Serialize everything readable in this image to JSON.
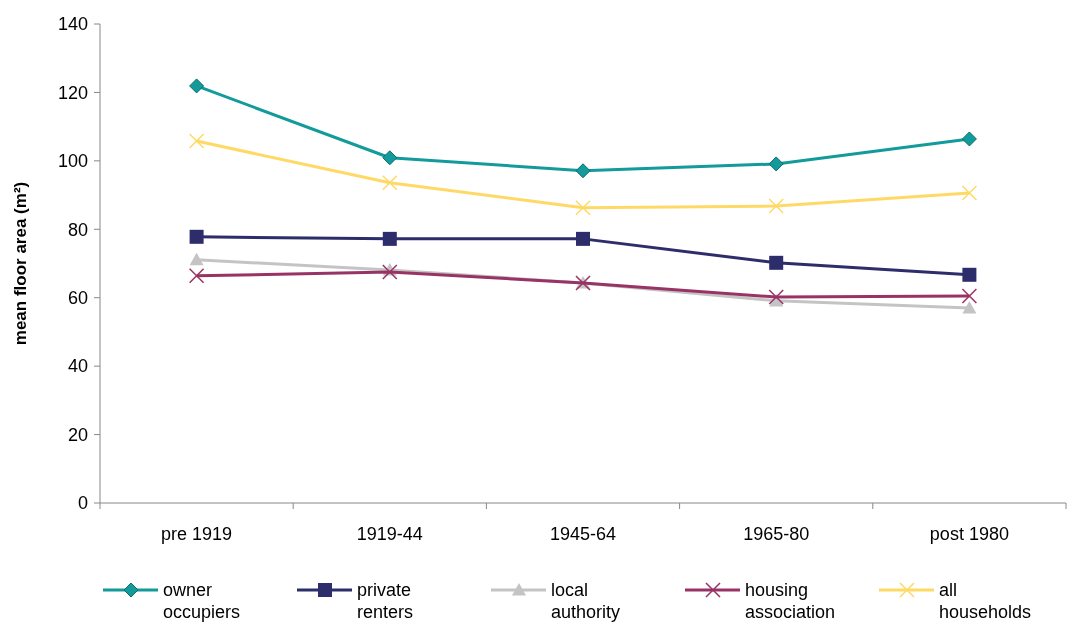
{
  "chart_data": {
    "type": "line",
    "ylabel": "mean floor area (m²)",
    "categories": [
      "pre 1919",
      "1919-44",
      "1945-64",
      "1965-80",
      "post 1980"
    ],
    "ylim": [
      0,
      140
    ],
    "yticks": [
      0,
      20,
      40,
      60,
      80,
      100,
      120,
      140
    ],
    "grid": false,
    "legend": "bottom",
    "series": [
      {
        "name": "owner occupiers",
        "color": "#139a9a",
        "marker": "diamond",
        "values": [
          121.9,
          100.9,
          97.1,
          99.1,
          106.4
        ]
      },
      {
        "name": "private renters",
        "color": "#2e2d6b",
        "marker": "square",
        "values": [
          77.8,
          77.2,
          77.2,
          70.2,
          66.7
        ]
      },
      {
        "name": "local authority",
        "color": "#c4c4c4",
        "marker": "triangle",
        "values": [
          71.1,
          68.1,
          64.3,
          59.1,
          57.0
        ]
      },
      {
        "name": "housing association",
        "color": "#993366",
        "marker": "cross",
        "values": [
          66.4,
          67.5,
          64.3,
          60.2,
          60.5
        ]
      },
      {
        "name": "all households",
        "color": "#ffd966",
        "marker": "cross",
        "values": [
          105.8,
          93.6,
          86.3,
          86.8,
          90.6
        ]
      }
    ]
  }
}
